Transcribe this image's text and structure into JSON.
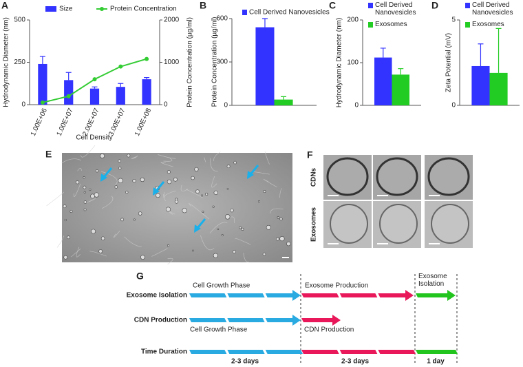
{
  "chart_data": [
    {
      "type": "bar",
      "panel": "A",
      "categories": [
        "1.00E+06",
        "1.00E+07",
        "2.00E+07",
        "3.00E+07",
        "1.00E+08"
      ],
      "series": [
        {
          "name": "Size",
          "color": "#3333ff",
          "values": [
            240,
            145,
            95,
            105,
            150
          ],
          "errors": [
            45,
            45,
            10,
            20,
            10
          ]
        },
        {
          "name": "Protein Concentration",
          "type": "line",
          "axis": "y2",
          "color": "#33cc33",
          "values": [
            50,
            200,
            600,
            900,
            1080
          ]
        }
      ],
      "ylim": [
        0,
        500
      ],
      "yticks": [
        0,
        250,
        500
      ],
      "y2lim": [
        0,
        2000
      ],
      "y2ticks": [
        0,
        1000,
        2000
      ],
      "xlabel": "Cell Density",
      "ylabel": "Hydrodynamic Diameter (nm)",
      "y2label": "Protein Concentration (µg/ml)"
    },
    {
      "type": "bar",
      "panel": "B",
      "categories": [
        null
      ],
      "series": [
        {
          "name": "Cell Derived Nanovesicles",
          "color": "#3333ff",
          "values": [
            540
          ],
          "errors": [
            60
          ]
        },
        {
          "color": "#22cc22",
          "values": [
            40
          ],
          "errors": [
            20
          ]
        }
      ],
      "ylim": [
        0,
        600
      ],
      "yticks": [
        0,
        300,
        600
      ],
      "ylabel": "Protein Concentration (µg/ml)"
    },
    {
      "type": "bar",
      "panel": "C",
      "categories": [
        null
      ],
      "series": [
        {
          "name": "Cell Derived Nanovesicles",
          "color": "#3333ff",
          "values": [
            112
          ],
          "errors": [
            22
          ]
        },
        {
          "name": "Exosomes",
          "color": "#22cc22",
          "values": [
            72
          ],
          "errors": [
            14
          ]
        }
      ],
      "ylim": [
        0,
        200
      ],
      "yticks": [
        0,
        100,
        200
      ],
      "ylabel": "Hydrodynamic Diameter (nm)"
    },
    {
      "type": "bar",
      "panel": "D",
      "categories": [
        null
      ],
      "series": [
        {
          "name": "Cell Derived Nanovesicles",
          "color": "#3333ff",
          "values": [
            2.3
          ],
          "errors": [
            1.3
          ]
        },
        {
          "name": "Exosomes",
          "color": "#22cc22",
          "values": [
            1.9
          ],
          "errors": [
            2.6
          ]
        }
      ],
      "ylim": [
        0,
        5
      ],
      "yticks": [
        0,
        5
      ],
      "ylabel": "Zeta Potential (mV)"
    }
  ],
  "micrograph": {
    "label": "E"
  },
  "tem": {
    "label": "F",
    "rows": [
      "CDNs",
      "Exosomes"
    ]
  },
  "timeline": {
    "label": "G",
    "rows": [
      "Exosome Isolation",
      "CDN Production",
      "Time Duration"
    ],
    "phases": [
      "Cell Growth Phase",
      "Exosome Production",
      "Exosome Isolation",
      "Cell Growth Phase",
      "CDN Production"
    ],
    "durations": [
      "2-3 days",
      "2-3 days",
      "1 day"
    ]
  }
}
